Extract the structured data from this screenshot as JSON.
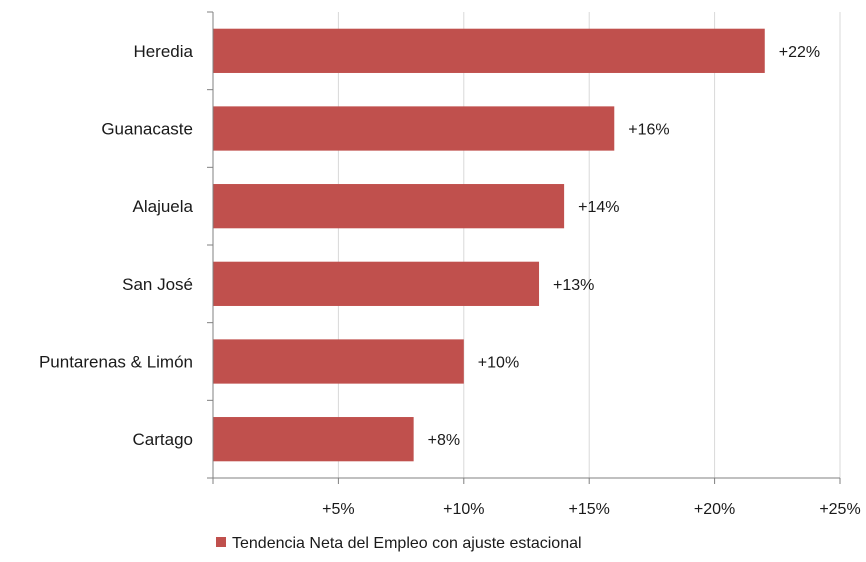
{
  "chart_data": {
    "type": "bar",
    "orientation": "horizontal",
    "categories": [
      "Heredia",
      "Guanacaste",
      "Alajuela",
      "San José",
      "Puntarenas & Limón",
      "Cartago"
    ],
    "series": [
      {
        "name": "Tendencia Neta del Empleo con ajuste estacional",
        "values": [
          22,
          16,
          14,
          13,
          10,
          8
        ],
        "labels": [
          "+22%",
          "+16%",
          "+14%",
          "+13%",
          "+10%",
          "+8%"
        ],
        "color": "#C0504D"
      }
    ],
    "xlim": [
      0,
      25
    ],
    "xticks": [
      5,
      10,
      15,
      20,
      25
    ],
    "xtick_labels": [
      "+5%",
      "+10%",
      "+15%",
      "+20%",
      "+25%"
    ],
    "grid": "vertical",
    "legend_position": "bottom",
    "colors": {
      "bar": "#C0504D",
      "grid": "#d9d9d9",
      "axis": "#808080"
    }
  }
}
